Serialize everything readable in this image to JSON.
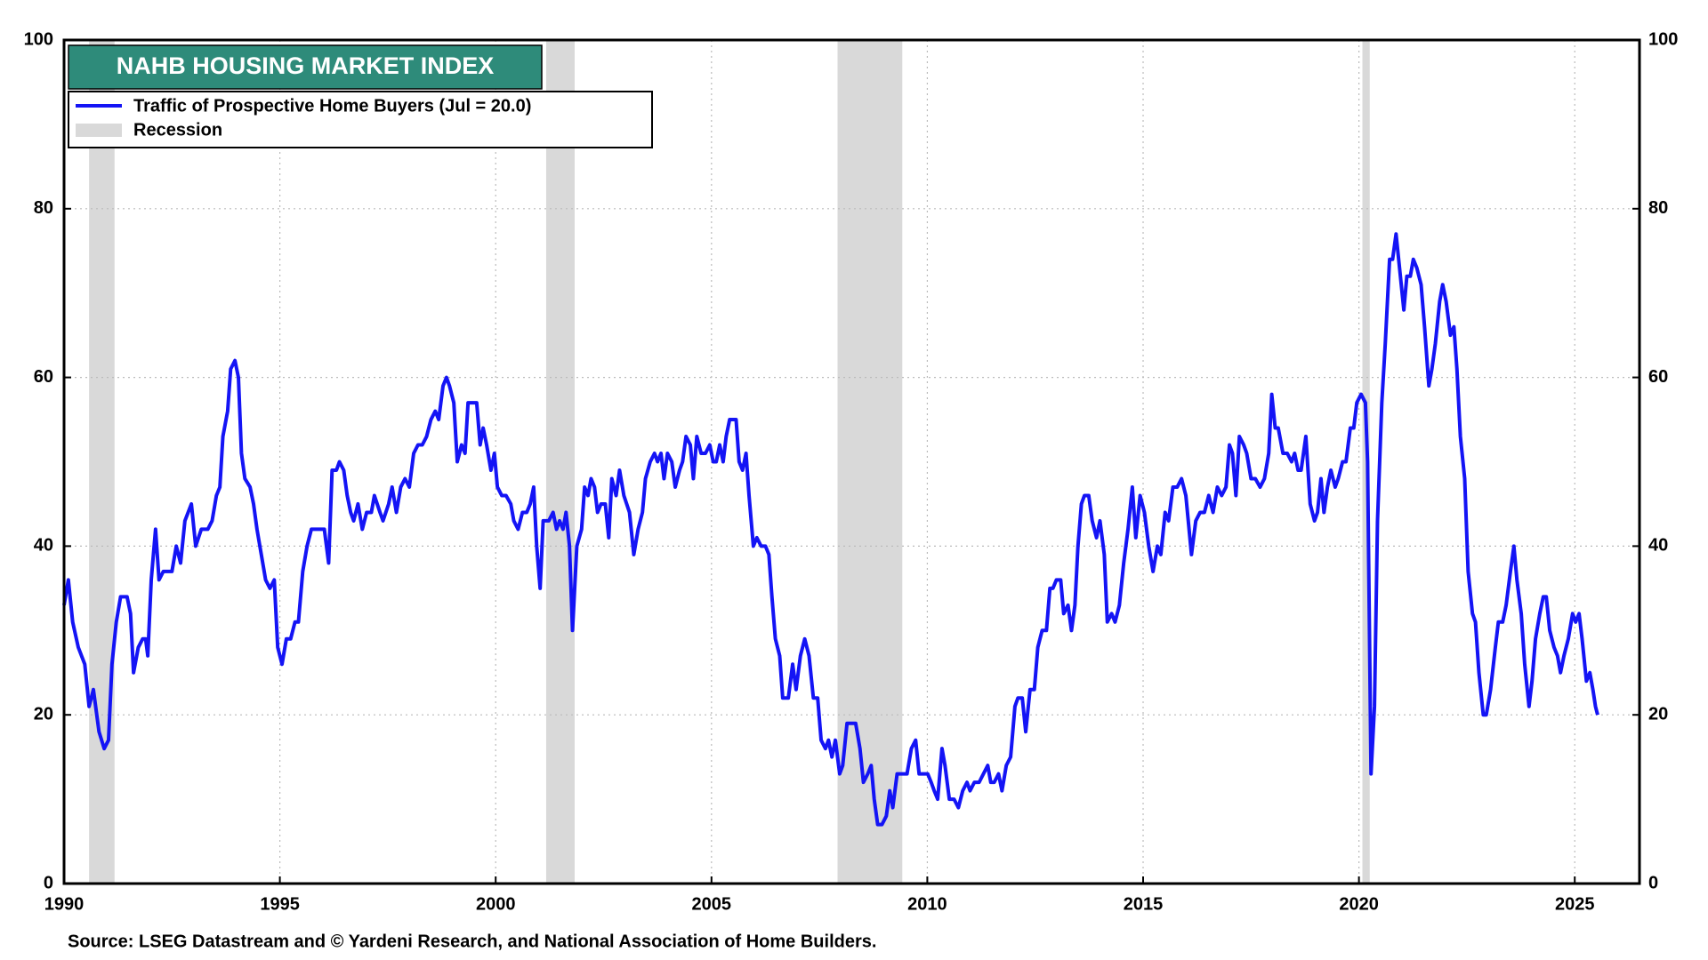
{
  "chart_data": {
    "type": "line",
    "title": "NAHB HOUSING MARKET INDEX",
    "source": "Source: LSEG Datastream and © Yardeni Research, and National Association of Home Builders.",
    "x": [
      1990.0,
      1990.1,
      1990.2,
      1990.33,
      1990.48,
      1990.58,
      1990.68,
      1990.81,
      1990.93,
      1991.03,
      1991.11,
      1991.21,
      1991.31,
      1991.46,
      1991.54,
      1991.61,
      1991.72,
      1991.82,
      1991.89,
      1991.94,
      1992.02,
      1992.12,
      1992.2,
      1992.3,
      1992.5,
      1992.6,
      1992.7,
      1992.8,
      1992.95,
      1993.05,
      1993.18,
      1993.33,
      1993.43,
      1993.53,
      1993.61,
      1993.68,
      1993.79,
      1993.86,
      1993.96,
      1994.04,
      1994.11,
      1994.19,
      1994.31,
      1994.39,
      1994.47,
      1994.57,
      1994.67,
      1994.77,
      1994.87,
      1994.95,
      1995.05,
      1995.15,
      1995.25,
      1995.35,
      1995.43,
      1995.53,
      1995.63,
      1995.73,
      1995.95,
      1996.03,
      1996.13,
      1996.21,
      1996.31,
      1996.38,
      1996.48,
      1996.56,
      1996.64,
      1996.71,
      1996.81,
      1996.91,
      1997.01,
      1997.12,
      1997.19,
      1997.32,
      1997.39,
      1997.52,
      1997.6,
      1997.7,
      1997.8,
      1997.9,
      1998.0,
      1998.1,
      1998.2,
      1998.3,
      1998.4,
      1998.5,
      1998.6,
      1998.68,
      1998.78,
      1998.86,
      1998.93,
      1999.03,
      1999.11,
      1999.21,
      1999.29,
      1999.36,
      1999.56,
      1999.64,
      1999.71,
      1999.79,
      1999.89,
      1999.97,
      2000.04,
      2000.14,
      2000.24,
      2000.35,
      2000.42,
      2000.52,
      2000.62,
      2000.72,
      2000.8,
      2000.88,
      2000.95,
      2001.03,
      2001.1,
      2001.23,
      2001.33,
      2001.41,
      2001.48,
      2001.56,
      2001.63,
      2001.71,
      2001.78,
      2001.88,
      2001.99,
      2002.06,
      2002.14,
      2002.21,
      2002.29,
      2002.36,
      2002.44,
      2002.54,
      2002.62,
      2002.69,
      2002.79,
      2002.87,
      2002.97,
      2003.1,
      2003.2,
      2003.3,
      2003.4,
      2003.47,
      2003.58,
      2003.68,
      2003.75,
      2003.83,
      2003.9,
      2003.98,
      2004.08,
      2004.16,
      2004.26,
      2004.33,
      2004.41,
      2004.51,
      2004.58,
      2004.66,
      2004.76,
      2004.86,
      2004.96,
      2005.04,
      2005.11,
      2005.19,
      2005.27,
      2005.34,
      2005.42,
      2005.57,
      2005.64,
      2005.72,
      2005.8,
      2005.87,
      2005.97,
      2006.05,
      2006.15,
      2006.25,
      2006.33,
      2006.4,
      2006.48,
      2006.58,
      2006.65,
      2006.78,
      2006.88,
      2006.96,
      2007.06,
      2007.16,
      2007.26,
      2007.36,
      2007.46,
      2007.54,
      2007.64,
      2007.71,
      2007.79,
      2007.87,
      2007.97,
      2008.04,
      2008.14,
      2008.34,
      2008.44,
      2008.52,
      2008.62,
      2008.7,
      2008.77,
      2008.85,
      2008.95,
      2009.05,
      2009.13,
      2009.2,
      2009.3,
      2009.53,
      2009.63,
      2009.73,
      2009.81,
      2009.91,
      2010.01,
      2010.09,
      2010.16,
      2010.24,
      2010.34,
      2010.41,
      2010.51,
      2010.62,
      2010.72,
      2010.82,
      2010.92,
      2010.99,
      2011.09,
      2011.2,
      2011.3,
      2011.4,
      2011.47,
      2011.55,
      2011.65,
      2011.73,
      2011.83,
      2011.93,
      2012.03,
      2012.1,
      2012.2,
      2012.28,
      2012.38,
      2012.48,
      2012.56,
      2012.66,
      2012.76,
      2012.84,
      2012.91,
      2012.99,
      2013.09,
      2013.16,
      2013.26,
      2013.34,
      2013.42,
      2013.49,
      2013.57,
      2013.64,
      2013.74,
      2013.82,
      2013.92,
      2014.0,
      2014.1,
      2014.17,
      2014.27,
      2014.35,
      2014.45,
      2014.55,
      2014.65,
      2014.75,
      2014.83,
      2014.93,
      2015.03,
      2015.13,
      2015.23,
      2015.33,
      2015.41,
      2015.51,
      2015.59,
      2015.69,
      2015.79,
      2015.89,
      2015.99,
      2016.12,
      2016.22,
      2016.32,
      2016.42,
      2016.52,
      2016.62,
      2016.72,
      2016.82,
      2016.92,
      2017.0,
      2017.07,
      2017.15,
      2017.23,
      2017.33,
      2017.4,
      2017.5,
      2017.6,
      2017.71,
      2017.81,
      2017.91,
      2017.98,
      2018.06,
      2018.13,
      2018.24,
      2018.34,
      2018.44,
      2018.51,
      2018.59,
      2018.66,
      2018.77,
      2018.87,
      2018.97,
      2019.04,
      2019.12,
      2019.19,
      2019.27,
      2019.35,
      2019.45,
      2019.52,
      2019.62,
      2019.7,
      2019.8,
      2019.88,
      2019.95,
      2020.05,
      2020.15,
      2020.2,
      2020.28,
      2020.36,
      2020.43,
      2020.53,
      2020.61,
      2020.71,
      2020.78,
      2020.86,
      2020.94,
      2021.04,
      2021.11,
      2021.19,
      2021.26,
      2021.34,
      2021.44,
      2021.52,
      2021.62,
      2021.69,
      2021.77,
      2021.87,
      2021.94,
      2022.02,
      2022.12,
      2022.2,
      2022.27,
      2022.35,
      2022.45,
      2022.53,
      2022.63,
      2022.7,
      2022.78,
      2022.88,
      2022.95,
      2023.05,
      2023.16,
      2023.23,
      2023.33,
      2023.41,
      2023.51,
      2023.59,
      2023.66,
      2023.76,
      2023.84,
      2023.94,
      2024.01,
      2024.09,
      2024.19,
      2024.27,
      2024.34,
      2024.42,
      2024.52,
      2024.6,
      2024.67,
      2024.75,
      2024.85,
      2024.95,
      2025.02,
      2025.1,
      2025.17,
      2025.27,
      2025.35,
      2025.42,
      2025.48,
      2025.53
    ],
    "series": [
      {
        "name": "Traffic of Prospective Home Buyers  (Jul = 20.0)",
        "color": "#1414f5",
        "values": [
          33,
          36,
          31,
          28,
          26,
          21,
          23,
          18,
          16,
          17,
          26,
          31,
          34,
          34,
          32,
          25,
          28,
          29,
          29,
          27,
          36,
          42,
          36,
          37,
          37,
          40,
          38,
          43,
          45,
          40,
          42,
          42,
          43,
          46,
          47,
          53,
          56,
          61,
          62,
          60,
          51,
          48,
          47,
          45,
          42,
          39,
          36,
          35,
          36,
          28,
          26,
          29,
          29,
          31,
          31,
          37,
          40,
          42,
          42,
          42,
          38,
          49,
          49,
          50,
          49,
          46,
          44,
          43,
          45,
          42,
          44,
          44,
          46,
          44,
          43,
          45,
          47,
          44,
          47,
          48,
          47,
          51,
          52,
          52,
          53,
          55,
          56,
          55,
          59,
          60,
          59,
          57,
          50,
          52,
          51,
          57,
          57,
          52,
          54,
          52,
          49,
          51,
          47,
          46,
          46,
          45,
          43,
          42,
          44,
          44,
          45,
          47,
          40,
          35,
          43,
          43,
          44,
          42,
          43,
          42,
          44,
          40,
          30,
          40,
          42,
          47,
          46,
          48,
          47,
          44,
          45,
          45,
          41,
          48,
          46,
          49,
          46,
          44,
          39,
          42,
          44,
          48,
          50,
          51,
          50,
          51,
          48,
          51,
          50,
          47,
          49,
          50,
          53,
          52,
          48,
          53,
          51,
          51,
          52,
          50,
          50,
          52,
          50,
          53,
          55,
          55,
          50,
          49,
          51,
          46,
          40,
          41,
          40,
          40,
          39,
          34,
          29,
          27,
          22,
          22,
          26,
          23,
          27,
          29,
          27,
          22,
          22,
          17,
          16,
          17,
          15,
          17,
          13,
          14,
          19,
          19,
          16,
          12,
          13,
          14,
          10,
          7,
          7,
          8,
          11,
          9,
          13,
          13,
          16,
          17,
          13,
          13,
          13,
          12,
          11,
          10,
          16,
          14,
          10,
          10,
          9,
          11,
          12,
          11,
          12,
          12,
          13,
          14,
          12,
          12,
          13,
          11,
          14,
          15,
          21,
          22,
          22,
          18,
          23,
          23,
          28,
          30,
          30,
          35,
          35,
          36,
          36,
          32,
          33,
          30,
          33,
          40,
          45,
          46,
          46,
          43,
          41,
          43,
          39,
          31,
          32,
          31,
          33,
          38,
          42,
          47,
          41,
          46,
          44,
          40,
          37,
          40,
          39,
          44,
          43,
          47,
          47,
          48,
          46,
          39,
          43,
          44,
          44,
          46,
          44,
          47,
          46,
          47,
          52,
          51,
          46,
          53,
          52,
          51,
          48,
          48,
          47,
          48,
          51,
          58,
          54,
          54,
          51,
          51,
          50,
          51,
          49,
          49,
          53,
          45,
          43,
          44,
          48,
          44,
          47,
          49,
          47,
          48,
          50,
          50,
          54,
          54,
          57,
          58,
          57,
          50,
          13,
          21,
          43,
          57,
          64,
          74,
          74,
          77,
          73,
          68,
          72,
          72,
          74,
          73,
          71,
          66,
          59,
          61,
          64,
          69,
          71,
          69,
          65,
          66,
          61,
          53,
          48,
          37,
          32,
          31,
          25,
          20,
          20,
          23,
          28,
          31,
          31,
          33,
          37,
          40,
          36,
          32,
          26,
          21,
          24,
          29,
          32,
          34,
          34,
          30,
          28,
          27,
          25,
          27,
          29,
          32,
          31,
          32,
          29,
          24,
          25,
          23,
          21,
          20
        ]
      }
    ],
    "recession": {
      "name": "Recession",
      "color": "#d9d9d9",
      "spans": [
        [
          1990.58,
          1991.17
        ],
        [
          2001.17,
          2001.83
        ],
        [
          2007.92,
          2009.42
        ],
        [
          2020.08,
          2020.25
        ]
      ]
    },
    "xlim": [
      1990,
      2026.5
    ],
    "xticks": [
      1990,
      1995,
      2000,
      2005,
      2010,
      2015,
      2020,
      2025
    ],
    "ylim": [
      0,
      100
    ],
    "yticks": [
      0,
      20,
      40,
      60,
      80,
      100
    ],
    "y2lim": [
      0,
      100
    ],
    "y2ticks": [
      0,
      20,
      40,
      60,
      80,
      100
    ],
    "grid": true
  }
}
